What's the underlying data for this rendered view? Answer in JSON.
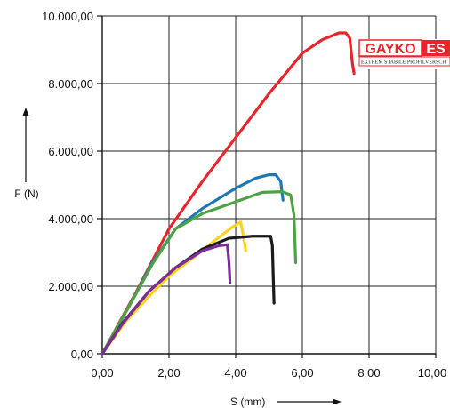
{
  "chart_data": {
    "type": "line",
    "title": "",
    "xlabel": "S (mm)",
    "ylabel": "F (N)",
    "xlim": [
      0,
      10
    ],
    "ylim": [
      0,
      10000
    ],
    "x_ticks": [
      {
        "value": 0,
        "label": "0,00"
      },
      {
        "value": 2,
        "label": "2,00"
      },
      {
        "value": 4,
        "label": "4,00"
      },
      {
        "value": 6,
        "label": "6,00"
      },
      {
        "value": 8,
        "label": "8,00"
      },
      {
        "value": 10,
        "label": "10,00"
      }
    ],
    "y_ticks": [
      {
        "value": 0,
        "label": "0,00"
      },
      {
        "value": 2000,
        "label": "2.000,00"
      },
      {
        "value": 4000,
        "label": "4.000,00"
      },
      {
        "value": 6000,
        "label": "6.000,00"
      },
      {
        "value": 8000,
        "label": "8.000,00"
      },
      {
        "value": 10000,
        "label": "10.000,00"
      }
    ],
    "grid": true,
    "legend": "none",
    "series": [
      {
        "color": "#e8252b",
        "points": [
          [
            0,
            0
          ],
          [
            1,
            1800
          ],
          [
            2,
            3700
          ],
          [
            3,
            5100
          ],
          [
            4,
            6400
          ],
          [
            5,
            7700
          ],
          [
            6,
            8900
          ],
          [
            6.6,
            9300
          ],
          [
            7.1,
            9500
          ],
          [
            7.3,
            9500
          ],
          [
            7.42,
            9350
          ],
          [
            7.5,
            8600
          ],
          [
            7.55,
            8300
          ]
        ]
      },
      {
        "color": "#1f77b4",
        "points": [
          [
            0,
            0
          ],
          [
            0.8,
            1400
          ],
          [
            1.5,
            2700
          ],
          [
            2.2,
            3700
          ],
          [
            3,
            4300
          ],
          [
            4,
            4900
          ],
          [
            4.6,
            5200
          ],
          [
            5,
            5300
          ],
          [
            5.2,
            5300
          ],
          [
            5.35,
            5100
          ],
          [
            5.42,
            4550
          ]
        ]
      },
      {
        "color": "#4ba345",
        "points": [
          [
            0,
            0
          ],
          [
            0.8,
            1400
          ],
          [
            1.5,
            2650
          ],
          [
            2.2,
            3700
          ],
          [
            3,
            4150
          ],
          [
            4,
            4500
          ],
          [
            4.8,
            4780
          ],
          [
            5.4,
            4800
          ],
          [
            5.65,
            4700
          ],
          [
            5.75,
            4100
          ],
          [
            5.8,
            2700
          ]
        ]
      },
      {
        "color": "#ffd21f",
        "points": [
          [
            0,
            0
          ],
          [
            0.7,
            950
          ],
          [
            1.4,
            1700
          ],
          [
            2,
            2300
          ],
          [
            2.8,
            2900
          ],
          [
            3.5,
            3450
          ],
          [
            3.9,
            3750
          ],
          [
            4.15,
            3900
          ],
          [
            4.25,
            3400
          ],
          [
            4.3,
            3050
          ]
        ]
      },
      {
        "color": "#1a1a1a",
        "points": [
          [
            0,
            0
          ],
          [
            0.6,
            900
          ],
          [
            1.4,
            1850
          ],
          [
            2.2,
            2550
          ],
          [
            3,
            3100
          ],
          [
            3.8,
            3420
          ],
          [
            4.5,
            3480
          ],
          [
            5.05,
            3480
          ],
          [
            5.1,
            3200
          ],
          [
            5.15,
            1500
          ]
        ]
      },
      {
        "color": "#7b2d9b",
        "points": [
          [
            0,
            0
          ],
          [
            0.6,
            880
          ],
          [
            1.4,
            1850
          ],
          [
            2.2,
            2550
          ],
          [
            3,
            3050
          ],
          [
            3.5,
            3200
          ],
          [
            3.75,
            3230
          ],
          [
            3.8,
            2700
          ],
          [
            3.83,
            2100
          ]
        ]
      }
    ]
  },
  "logo": {
    "text_left": "GAYKO",
    "text_right": "ES",
    "subtitle": "EXTREM STABILE PROFILVERSCH",
    "color_left": "#e8252b",
    "color_right": "#ffffff"
  }
}
